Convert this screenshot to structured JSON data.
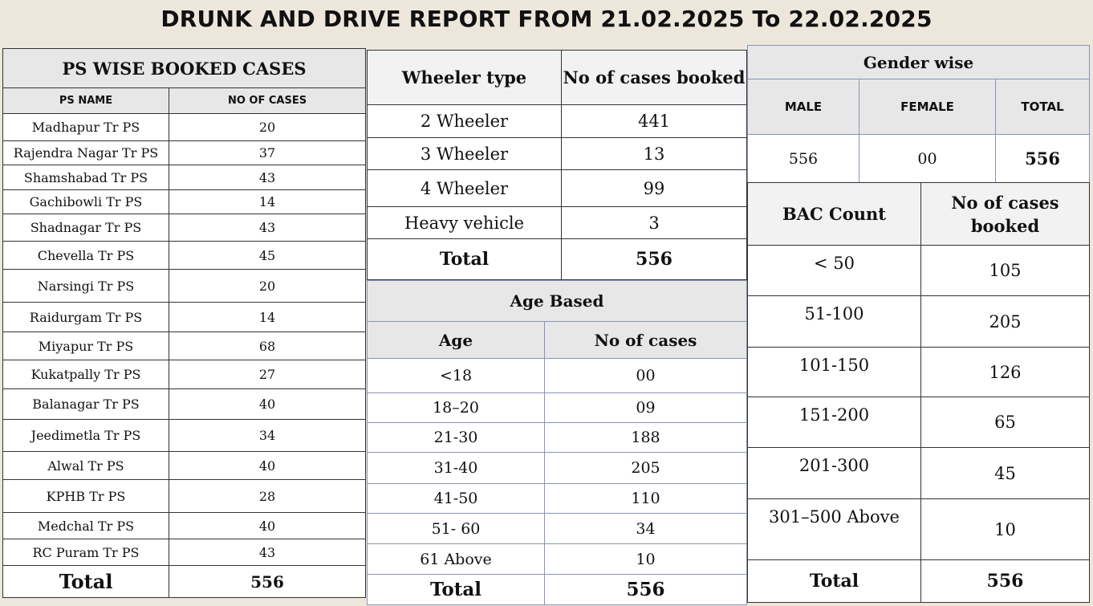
{
  "title": "DRUNK AND DRIVE REPORT FROM 21.02.2025 To 22.02.2025",
  "ps_table": {
    "title": "PS WISE BOOKED CASES",
    "col_name": "PS NAME",
    "col_cases": "NO OF CASES",
    "rows": [
      {
        "name": "Madhapur Tr PS",
        "cases": "20"
      },
      {
        "name": "Rajendra Nagar Tr PS",
        "cases": "37"
      },
      {
        "name": "Shamshabad Tr PS",
        "cases": "43"
      },
      {
        "name": "Gachibowli Tr PS",
        "cases": "14"
      },
      {
        "name": "Shadnagar Tr PS",
        "cases": "43"
      },
      {
        "name": "Chevella Tr PS",
        "cases": "45"
      },
      {
        "name": "Narsingi Tr PS",
        "cases": "20"
      },
      {
        "name": "Raidurgam Tr PS",
        "cases": "14"
      },
      {
        "name": "Miyapur Tr PS",
        "cases": "68"
      },
      {
        "name": "Kukatpally Tr PS",
        "cases": "27"
      },
      {
        "name": "Balanagar Tr PS",
        "cases": "40"
      },
      {
        "name": "Jeedimetla Tr PS",
        "cases": "34"
      },
      {
        "name": "Alwal Tr PS",
        "cases": "40"
      },
      {
        "name": "KPHB Tr PS",
        "cases": "28"
      },
      {
        "name": "Medchal Tr PS",
        "cases": "40"
      },
      {
        "name": "RC Puram Tr PS",
        "cases": "43"
      }
    ],
    "total_label": "Total",
    "total_value": "556"
  },
  "wheeler_table": {
    "col_type": "Wheeler type",
    "col_cases": "No of cases booked",
    "rows": [
      {
        "type": "2 Wheeler",
        "cases": "441"
      },
      {
        "type": "3 Wheeler",
        "cases": "13"
      },
      {
        "type": "4 Wheeler",
        "cases": "99"
      },
      {
        "type": "Heavy vehicle",
        "cases": "3"
      }
    ],
    "total_label": "Total",
    "total_value": "556"
  },
  "age_table": {
    "title": "Age Based",
    "col_age": "Age",
    "col_cases": "No of cases",
    "rows": [
      {
        "age": "<18",
        "cases": "00"
      },
      {
        "age": "18–20",
        "cases": "09"
      },
      {
        "age": "21-30",
        "cases": "188"
      },
      {
        "age": "31-40",
        "cases": "205"
      },
      {
        "age": "41-50",
        "cases": "110"
      },
      {
        "age": "51- 60",
        "cases": "34"
      },
      {
        "age": "61 Above",
        "cases": "10"
      }
    ],
    "total_label": "Total",
    "total_value": "556"
  },
  "gender_table": {
    "title": "Gender wise",
    "col_male": "MALE",
    "col_female": "FEMALE",
    "col_total": "TOTAL",
    "male": "556",
    "female": "00",
    "total": "556"
  },
  "bac_table": {
    "col_bac": "BAC Count",
    "col_cases": "No of cases booked",
    "rows": [
      {
        "range": "< 50",
        "cases": "105"
      },
      {
        "range": "51-100",
        "cases": "205"
      },
      {
        "range": "101-150",
        "cases": "126"
      },
      {
        "range": "151-200",
        "cases": "65"
      },
      {
        "range": "201-300",
        "cases": "45"
      },
      {
        "range": "301–500 Above",
        "cases": "10"
      }
    ],
    "total_label": "Total",
    "total_value": "556"
  }
}
